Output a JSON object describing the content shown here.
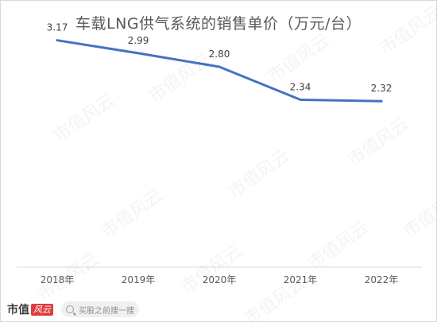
{
  "watermark_text": "市值风云",
  "footer": {
    "brand": "市值",
    "brand_mark": "风云",
    "search_placeholder": "买股之前搜一搜"
  },
  "colors": {
    "line": "#4472C4",
    "axis": "#d9d9d9",
    "text": "#595959"
  },
  "chart_data": {
    "type": "line",
    "title": "车载LNG供气系统的销售单价（万元/台）",
    "categories": [
      "2018年",
      "2019年",
      "2020年",
      "2021年",
      "2022年"
    ],
    "series": [
      {
        "values": [
          3.17,
          2.99,
          2.8,
          2.34,
          2.32
        ]
      }
    ],
    "data_labels": [
      "3.17",
      "2.99",
      "2.80",
      "2.34",
      "2.32"
    ],
    "ylim": [
      0,
      3.5
    ],
    "grid": false,
    "legend": "none"
  }
}
